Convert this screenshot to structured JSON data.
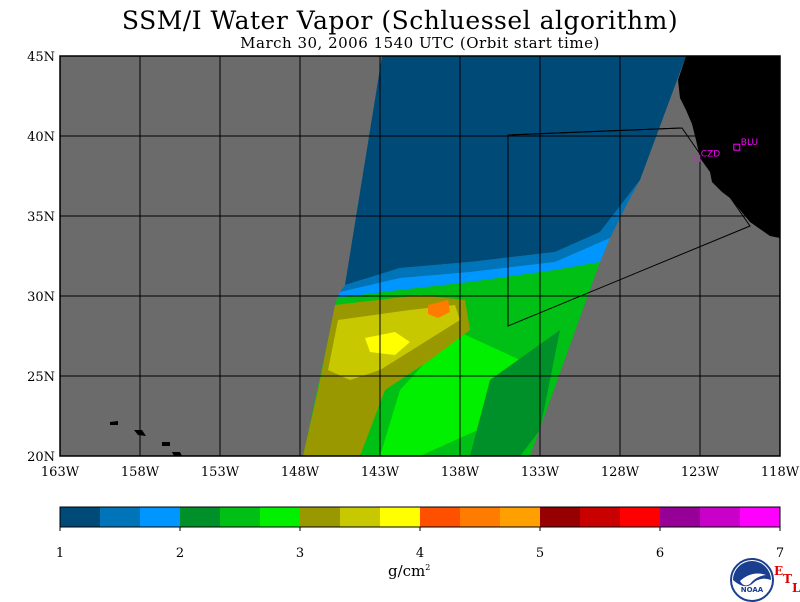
{
  "title": "SSM/I Water Vapor (Schluessel algorithm)",
  "subtitle": "March 30, 2006  1540 UTC  (Orbit start time)",
  "units": "g/cm",
  "units_exp": "2",
  "map": {
    "lat_labels": [
      "45N",
      "40N",
      "35N",
      "30N",
      "25N",
      "20N"
    ],
    "lon_labels": [
      "163W",
      "158W",
      "153W",
      "148W",
      "143W",
      "138W",
      "133W",
      "128W",
      "123W",
      "118W"
    ],
    "sites": [
      {
        "code": "CZD",
        "lat": 38.6,
        "lon": -123.2
      },
      {
        "code": "BLU",
        "lat": 39.3,
        "lon": -120.7
      }
    ],
    "no_data_color": "#6b6b6b",
    "land_color": "#000000",
    "grid_color": "#000000"
  },
  "colorbar": {
    "tick_labels": [
      "1",
      "2",
      "3",
      "4",
      "5",
      "6",
      "7"
    ],
    "min": 1,
    "max": 7,
    "colors": [
      "#004a78",
      "#0074b8",
      "#0096ff",
      "#00902a",
      "#00c015",
      "#00f000",
      "#9a9800",
      "#c8c800",
      "#ffff00",
      "#ff5000",
      "#ff7c00",
      "#ffa000",
      "#960000",
      "#c80000",
      "#ff0000",
      "#960096",
      "#c800c8",
      "#ff00ff"
    ]
  },
  "logo": {
    "agency": "NOAA",
    "lab_letters": [
      "E",
      "T",
      "L"
    ]
  }
}
